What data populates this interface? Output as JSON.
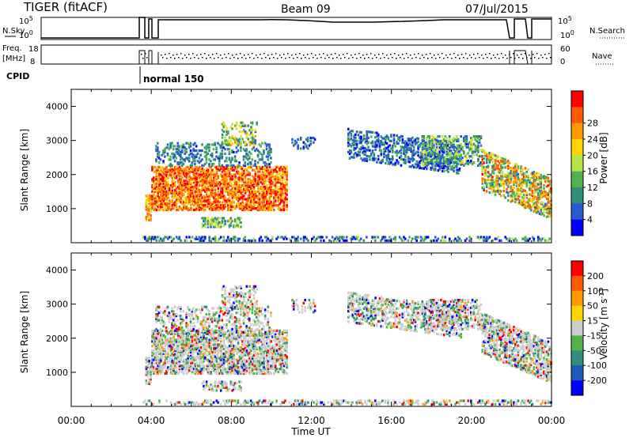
{
  "header": {
    "radar": "TIGER (fitACF)",
    "beam": "Beam 09",
    "date": "07/Jul/2015"
  },
  "top_panels": {
    "nsky_label": "N.Sky",
    "nsky_ticks": [
      "10^5",
      "10^0"
    ],
    "nsearch_label": "N.Search",
    "nsearch_ticks": [
      "10^5",
      "10^0"
    ],
    "freq_label": "Freq.",
    "freq_unit": "[MHz]",
    "freq_ticks": [
      "18",
      "8"
    ],
    "nave_label": "Nave",
    "nave_ticks": [
      "60",
      "0"
    ],
    "cpid_label": "CPID",
    "cpid_value": "normal 150"
  },
  "chart_data": [
    {
      "type": "heatmap",
      "title": "Power",
      "ylabel": "Slant Range [km]",
      "xlabel": "Time UT",
      "xlim": [
        0,
        24
      ],
      "ylim": [
        0,
        4500
      ],
      "yticks": [
        "1000",
        "2000",
        "3000",
        "4000"
      ],
      "xticks": [
        "00:00",
        "04:00",
        "08:00",
        "12:00",
        "16:00",
        "20:00",
        "00:00"
      ],
      "colorbar_label": "Power [dB]",
      "colorbar_ticks": [
        "4",
        "8",
        "12",
        "16",
        "20",
        "24",
        "28"
      ],
      "colorbar_colors": [
        "#0000ff",
        "#2a5acd",
        "#2f8f7a",
        "#52b24a",
        "#b4e64a",
        "#ffd400",
        "#ff9900",
        "#ff5a00",
        "#ff0000"
      ]
    },
    {
      "type": "heatmap",
      "title": "Velocity",
      "ylabel": "Slant Range [km]",
      "xlabel": "Time UT",
      "xlim": [
        0,
        24
      ],
      "ylim": [
        0,
        4500
      ],
      "yticks": [
        "1000",
        "2000",
        "3000",
        "4000"
      ],
      "xticks": [
        "00:00",
        "04:00",
        "08:00",
        "12:00",
        "16:00",
        "20:00",
        "00:00"
      ],
      "colorbar_label": "Velocity [m s^-1]",
      "colorbar_ticks": [
        "200",
        "100",
        "50",
        "15",
        "-15",
        "-50",
        "-100",
        "-200"
      ],
      "colorbar_colors": [
        "#0000ff",
        "#1e5ab4",
        "#2f8f7a",
        "#52b24a",
        "#cccccc",
        "#ffd400",
        "#ff9900",
        "#ff5a00",
        "#ff0000"
      ]
    }
  ],
  "axis": {
    "xlabel": "Time UT",
    "xticks": [
      "00:00",
      "04:00",
      "08:00",
      "12:00",
      "16:00",
      "20:00",
      "00:00"
    ],
    "ylabel": "Slant Range [km]"
  }
}
